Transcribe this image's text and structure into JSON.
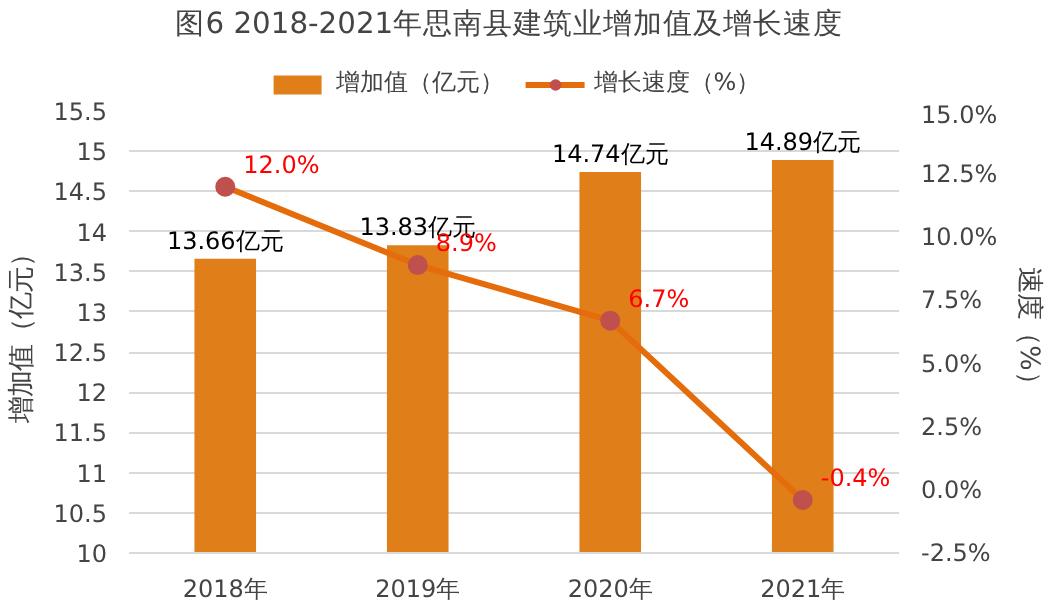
{
  "chart_data": {
    "type": "bar",
    "title": "图6  2018-2021年思南县建筑业增加值及增长速度",
    "ylabel": "增加值（亿元）",
    "y2label": "速度（%）",
    "categories": [
      "2018年",
      "2019年",
      "2020年",
      "2021年"
    ],
    "series": [
      {
        "name": "增加值（亿元）",
        "color": "#e07f1a",
        "values": [
          13.66,
          13.83,
          14.74,
          14.89
        ],
        "value_labels": [
          "13.66亿元",
          "13.83亿元",
          "14.74亿元",
          "14.89亿元"
        ]
      },
      {
        "name": "增长速度（%）",
        "type": "line",
        "axis": "y2",
        "color": "#e46c0a",
        "marker": "circle",
        "values": [
          12.0,
          8.9,
          6.7,
          -0.4
        ],
        "value_labels": [
          "12.0%",
          "8.9%",
          "6.7%",
          "-0.4%"
        ]
      }
    ],
    "ylim": [
      10,
      15.5
    ],
    "yticks": [
      10,
      10.5,
      11,
      11.5,
      12,
      12.5,
      13,
      13.5,
      14,
      14.5,
      15,
      15.5
    ],
    "y2lim": [
      -2.5,
      15
    ],
    "y2ticks": [
      {
        "value": -2.5,
        "label": "-2.5%"
      },
      {
        "value": 0,
        "label": "0.0%"
      },
      {
        "value": 2.5,
        "label": "2.5%"
      },
      {
        "value": 5,
        "label": "5.0%"
      },
      {
        "value": 7.5,
        "label": "7.5%"
      },
      {
        "value": 10,
        "label": "10.0%"
      },
      {
        "value": 12.5,
        "label": "12.5%"
      },
      {
        "value": 15,
        "label": "15.0%"
      }
    ],
    "grid": "y",
    "legend": "top"
  }
}
